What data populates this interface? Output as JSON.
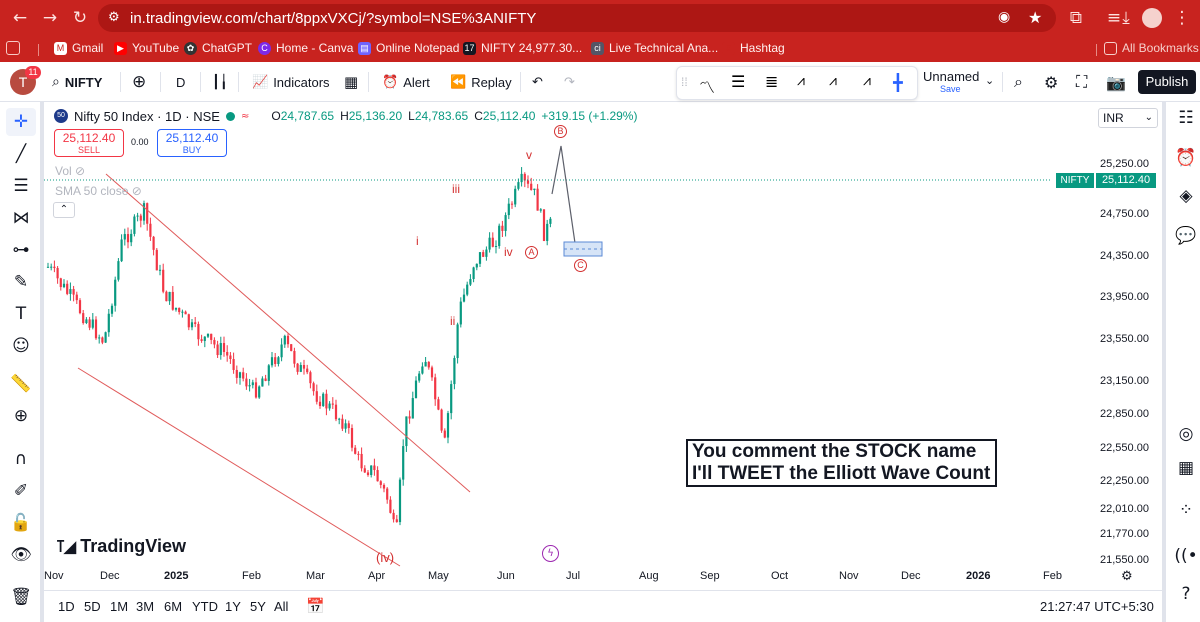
{
  "browser": {
    "url": "in.tradingview.com/chart/8ppxVXCj/?symbol=NSE%3ANIFTY",
    "bookmarks": [
      "Gmail",
      "YouTube",
      "ChatGPT",
      "Home - Canva",
      "Online Notepad",
      "NIFTY 24,977.30...",
      "Live Technical Ana...",
      "Hashtag"
    ],
    "all_bookmarks": "All Bookmarks",
    "accent": "#c8231f"
  },
  "toolbar": {
    "avatar_badge": "11",
    "symbol": "NIFTY",
    "interval": "D",
    "indicators": "Indicators",
    "alert": "Alert",
    "replay": "Replay",
    "layout_name": "Unnamed",
    "layout_save": "Save",
    "publish": "Publish"
  },
  "legend": {
    "symbol_badge": "50",
    "title": "Nifty 50 Index · 1D · NSE",
    "o_label": "O",
    "o": "24,787.65",
    "h_label": "H",
    "h": "25,136.20",
    "l_label": "L",
    "l": "24,783.65",
    "c_label": "C",
    "c": "25,112.40",
    "change": "+319.15 (+1.29%)",
    "sell_price": "25,112.40",
    "sell": "SELL",
    "spread": "0.00",
    "buy_price": "25,112.40",
    "buy": "BUY",
    "vol": "Vol",
    "sma": "SMA 50 close"
  },
  "price_scale": {
    "currency": "INR",
    "ticks": [
      "25,250.00",
      "24,750.00",
      "24,350.00",
      "23,950.00",
      "23,550.00",
      "23,150.00",
      "22,850.00",
      "22,550.00",
      "22,250.00",
      "22,010.00",
      "21,770.00",
      "21,550.00"
    ],
    "symbol_tag": "NIFTY",
    "last_price": "25,112.40"
  },
  "time_axis": {
    "labels": [
      "Nov",
      "Dec",
      "2025",
      "Feb",
      "Mar",
      "Apr",
      "May",
      "Jun",
      "Jul",
      "Aug",
      "Sep",
      "Oct",
      "Nov",
      "Dec",
      "2026",
      "Feb"
    ]
  },
  "wave_labels": {
    "i": "i",
    "ii": "ii",
    "iii": "iii",
    "iv": "iv",
    "v": "v",
    "iv_paren": "(iv)",
    "A": "A",
    "B": "B",
    "C": "C"
  },
  "callout": {
    "line1": "You comment the STOCK name",
    "line2": "I'll TWEET the Elliott Wave Count"
  },
  "watermark": "TradingView",
  "ranges": [
    "1D",
    "5D",
    "1M",
    "3M",
    "6M",
    "YTD",
    "1Y",
    "5Y",
    "All"
  ],
  "clock": "21:27:47 UTC+5:30",
  "colors": {
    "up": "#089981",
    "down": "#f23645",
    "wave": "#d32f2f",
    "channel": "#e05b5b"
  }
}
